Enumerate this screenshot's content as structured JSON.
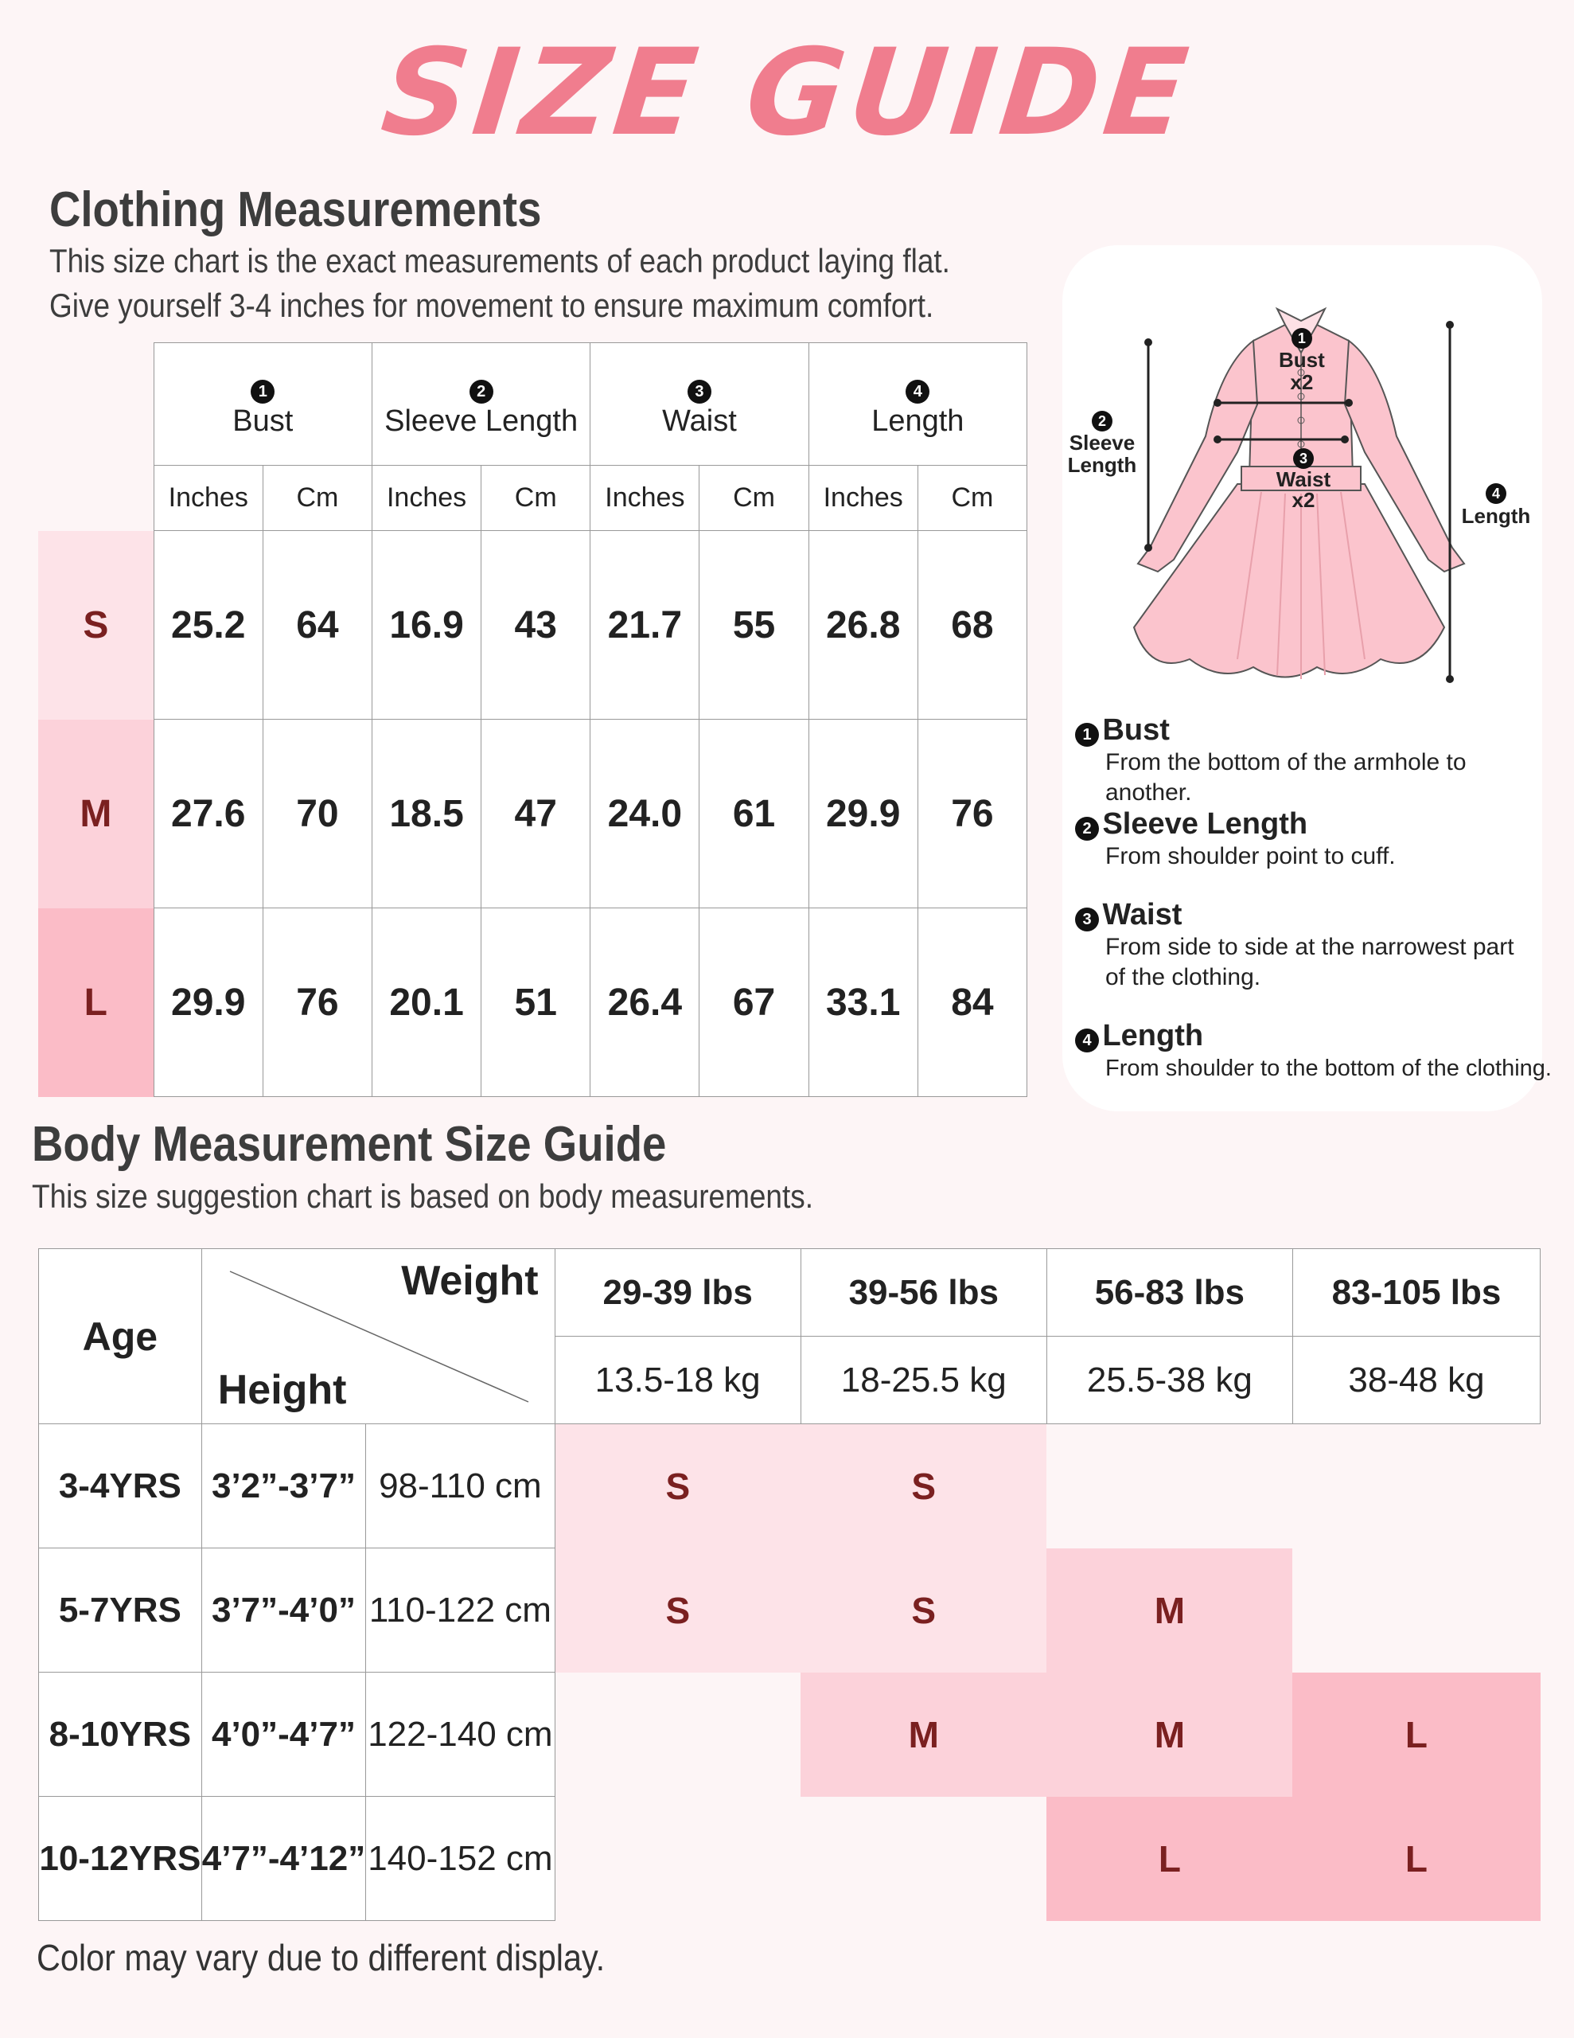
{
  "title": "SIZE GUIDE",
  "clothing": {
    "heading": "Clothing Measurements",
    "line1": "This size chart is the exact measurements of each product laying flat.",
    "line2": "Give yourself 3-4 inches for movement to ensure maximum comfort.",
    "columns": [
      {
        "num": "1",
        "label": "Bust"
      },
      {
        "num": "2",
        "label": "Sleeve Length"
      },
      {
        "num": "3",
        "label": "Waist"
      },
      {
        "num": "4",
        "label": "Length"
      }
    ],
    "units": [
      "Inches",
      "Cm"
    ],
    "rows": [
      {
        "size": "S",
        "values": [
          "25.2",
          "64",
          "16.9",
          "43",
          "21.7",
          "55",
          "26.8",
          "68"
        ],
        "color": "#fde3e8"
      },
      {
        "size": "M",
        "values": [
          "27.6",
          "70",
          "18.5",
          "47",
          "24.0",
          "61",
          "29.9",
          "76"
        ],
        "color": "#fcd2da"
      },
      {
        "size": "L",
        "values": [
          "29.9",
          "76",
          "20.1",
          "51",
          "26.4",
          "67",
          "33.1",
          "84"
        ],
        "color": "#fbbcc7"
      }
    ]
  },
  "diagram": {
    "bust": "Bust",
    "x2": "x2",
    "sleeve": "Sleeve",
    "length_word": "Length",
    "waist": "Waist",
    "length": "Length"
  },
  "definitions": [
    {
      "num": "1",
      "title": "Bust",
      "desc": "From the bottom of the armhole to another."
    },
    {
      "num": "2",
      "title": "Sleeve Length",
      "desc": "From shoulder point to cuff."
    },
    {
      "num": "3",
      "title": "Waist",
      "desc": "From side to side at the narrowest part of the clothing."
    },
    {
      "num": "4",
      "title": "Length",
      "desc": "From shoulder to the bottom of the clothing."
    }
  ],
  "body": {
    "heading": "Body Measurement Size Guide",
    "line1": "This size suggestion chart is based on body measurements.",
    "age_label": "Age",
    "weight_label": "Weight",
    "height_label": "Height",
    "weights_lbs": [
      "29-39 lbs",
      "39-56 lbs",
      "56-83 lbs",
      "83-105 lbs"
    ],
    "weights_kg": [
      "13.5-18 kg",
      "18-25.5 kg",
      "25.5-38 kg",
      "38-48 kg"
    ],
    "rows": [
      {
        "age": "3-4YRS",
        "ft": "3’2”-3’7”",
        "cm": "98-110 cm",
        "sizes": [
          "S",
          "S",
          "",
          ""
        ]
      },
      {
        "age": "5-7YRS",
        "ft": "3’7”-4’0”",
        "cm": "110-122 cm",
        "sizes": [
          "S",
          "S",
          "M",
          ""
        ]
      },
      {
        "age": "8-10YRS",
        "ft": "4’0”-4’7”",
        "cm": "122-140 cm",
        "sizes": [
          "",
          "M",
          "M",
          "L"
        ]
      },
      {
        "age": "10-12YRS",
        "ft": "4’7”-4’12”",
        "cm": "140-152 cm",
        "sizes": [
          "",
          "",
          "L",
          "L"
        ]
      }
    ],
    "size_colors": {
      "S": "#fde3e8",
      "M": "#fcd2da",
      "L": "#fbbcc7"
    }
  },
  "footer": "Color may vary due to different display."
}
